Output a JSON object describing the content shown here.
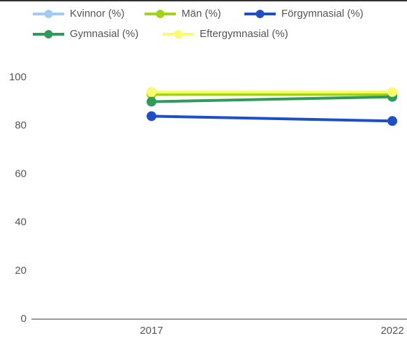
{
  "chart_data": {
    "type": "line",
    "categories": [
      "2017",
      "2022"
    ],
    "series": [
      {
        "name": "Kvinnor (%)",
        "color": "#9fcbf5",
        "values": [
          94,
          93
        ]
      },
      {
        "name": "Män (%)",
        "color": "#a2d318",
        "values": [
          93,
          93
        ]
      },
      {
        "name": "Förgymnasial (%)",
        "color": "#1f4fc7",
        "values": [
          84,
          82
        ]
      },
      {
        "name": "Gymnasial (%)",
        "color": "#2e9a5c",
        "values": [
          90,
          92
        ]
      },
      {
        "name": "Eftergymnasial (%)",
        "color": "#fbfb70",
        "values": [
          94,
          94
        ]
      }
    ],
    "ylim": [
      0,
      100
    ],
    "yticks": [
      0,
      20,
      40,
      60,
      80,
      100
    ],
    "legend": "top"
  }
}
